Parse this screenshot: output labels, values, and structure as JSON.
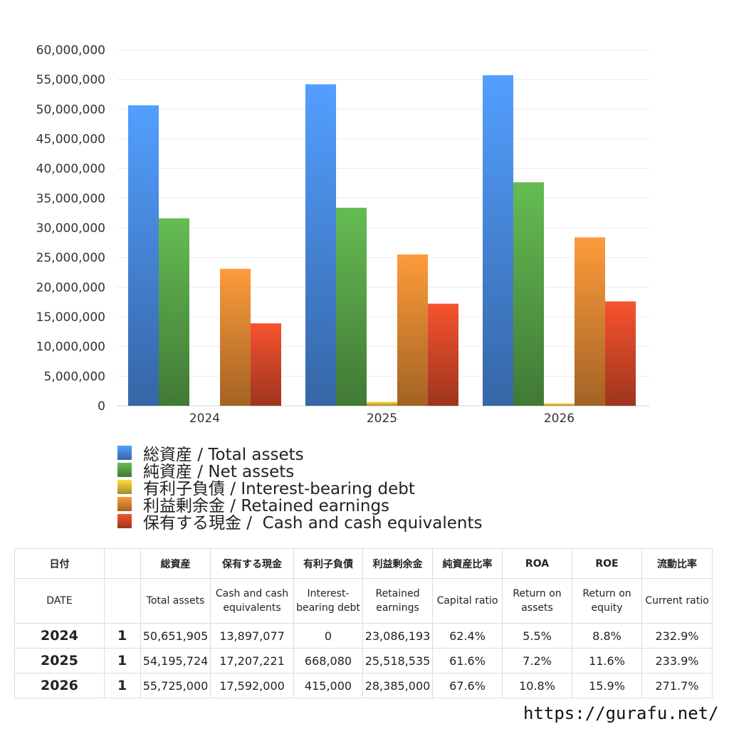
{
  "chart_data": {
    "type": "bar",
    "categories": [
      "2024",
      "2025",
      "2026"
    ],
    "series": [
      {
        "name": "総資産 / Total assets",
        "color": "#4a8ee6",
        "values": [
          50651905,
          54195724,
          55725000
        ]
      },
      {
        "name": "純資産 / Net assets",
        "color": "#5aa84a",
        "values": [
          31606788,
          33384566,
          37670100
        ]
      },
      {
        "name": "有利子負債 / Interest-bearing debt",
        "color": "#e6c23a",
        "values": [
          0,
          668080,
          415000
        ]
      },
      {
        "name": "利益剰余金 / Retained earnings",
        "color": "#e28a34",
        "values": [
          23086193,
          25518535,
          28385000
        ]
      },
      {
        "name": "保有する現金 /  Cash and cash equivalents",
        "color": "#dc4a2a",
        "values": [
          13897077,
          17207221,
          17592000
        ]
      }
    ],
    "yticks": [
      "60,000,000",
      "55,000,000",
      "50,000,000",
      "45,000,000",
      "40,000,000",
      "35,000,000",
      "30,000,000",
      "25,000,000",
      "20,000,000",
      "15,000,000",
      "10,000,000",
      "5,000,000",
      "0"
    ],
    "ylim": [
      0,
      60000000
    ],
    "grid": true,
    "legend": "bottom"
  },
  "table": {
    "headers_ja": [
      "日付",
      "",
      "総資産",
      "保有する現金",
      "有利子負債",
      "利益剰余金",
      "純資産比率",
      "ROA",
      "ROE",
      "流動比率"
    ],
    "headers_en": [
      "DATE",
      "",
      "Total assets",
      "Cash and cash equivalents",
      "Interest-bearing debt",
      "Retained earnings",
      "Capital ratio",
      "Return on assets",
      "Return on equity",
      "Current ratio"
    ],
    "rows": [
      [
        "2024",
        "1",
        "50,651,905",
        "13,897,077",
        "0",
        "23,086,193",
        "62.4%",
        "5.5%",
        "8.8%",
        "232.9%"
      ],
      [
        "2025",
        "1",
        "54,195,724",
        "17,207,221",
        "668,080",
        "25,518,535",
        "61.6%",
        "7.2%",
        "11.6%",
        "233.9%"
      ],
      [
        "2026",
        "1",
        "55,725,000",
        "17,592,000",
        "415,000",
        "28,385,000",
        "67.6%",
        "10.8%",
        "15.9%",
        "271.7%"
      ]
    ]
  },
  "footer": {
    "url": "https://gurafu.net/"
  }
}
